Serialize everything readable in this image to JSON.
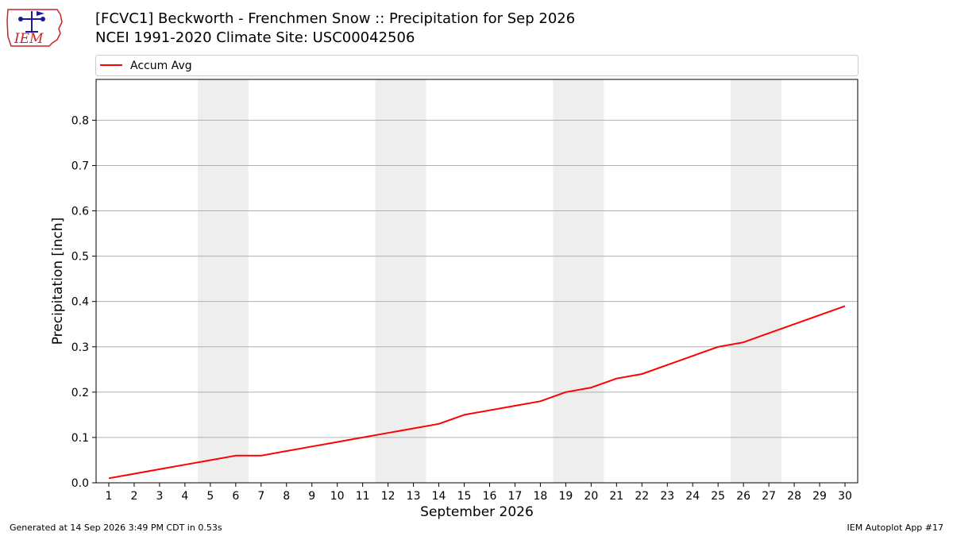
{
  "header": {
    "title": "[FCVC1] Beckworth - Frenchmen Snow :: Precipitation for Sep 2026",
    "subtitle": "NCEI 1991-2020 Climate Site: USC00042506",
    "logo_text": "IEM"
  },
  "footer": {
    "generated": "Generated at 14 Sep 2026 3:49 PM CDT in 0.53s",
    "app": "IEM Autoplot App #17"
  },
  "colors": {
    "series": "#ff0000",
    "weekend_band": "#eeeeee",
    "grid": "#b0b0b0",
    "logo": "#cc2222",
    "logo_icon": "#1a1aa0"
  },
  "chart_data": {
    "type": "line",
    "xlabel": "September 2026",
    "ylabel": "Precipitation [inch]",
    "xlim": [
      0.5,
      30.5
    ],
    "ylim": [
      0.0,
      0.89
    ],
    "yticks": [
      0.0,
      0.1,
      0.2,
      0.3,
      0.4,
      0.5,
      0.6,
      0.7,
      0.8
    ],
    "ytick_labels": [
      "0.0",
      "0.1",
      "0.2",
      "0.3",
      "0.4",
      "0.5",
      "0.6",
      "0.7",
      "0.8"
    ],
    "grid": "horizontal",
    "legend_placement": "top, above plot",
    "x": [
      1,
      2,
      3,
      4,
      5,
      6,
      7,
      8,
      9,
      10,
      11,
      12,
      13,
      14,
      15,
      16,
      17,
      18,
      19,
      20,
      21,
      22,
      23,
      24,
      25,
      26,
      27,
      28,
      29,
      30
    ],
    "xtick_labels": [
      "1",
      "2",
      "3",
      "4",
      "5",
      "6",
      "7",
      "8",
      "9",
      "10",
      "11",
      "12",
      "13",
      "14",
      "15",
      "16",
      "17",
      "18",
      "19",
      "20",
      "21",
      "22",
      "23",
      "24",
      "25",
      "26",
      "27",
      "28",
      "29",
      "30"
    ],
    "weekend_bands": [
      [
        5,
        6
      ],
      [
        12,
        13
      ],
      [
        19,
        20
      ],
      [
        26,
        27
      ]
    ],
    "series": [
      {
        "name": "Accum Avg",
        "values": [
          0.01,
          0.02,
          0.03,
          0.04,
          0.05,
          0.06,
          0.06,
          0.07,
          0.08,
          0.09,
          0.1,
          0.11,
          0.12,
          0.13,
          0.15,
          0.16,
          0.17,
          0.18,
          0.2,
          0.21,
          0.23,
          0.24,
          0.26,
          0.28,
          0.3,
          0.31,
          0.33,
          0.35,
          0.37,
          0.39
        ]
      }
    ]
  }
}
